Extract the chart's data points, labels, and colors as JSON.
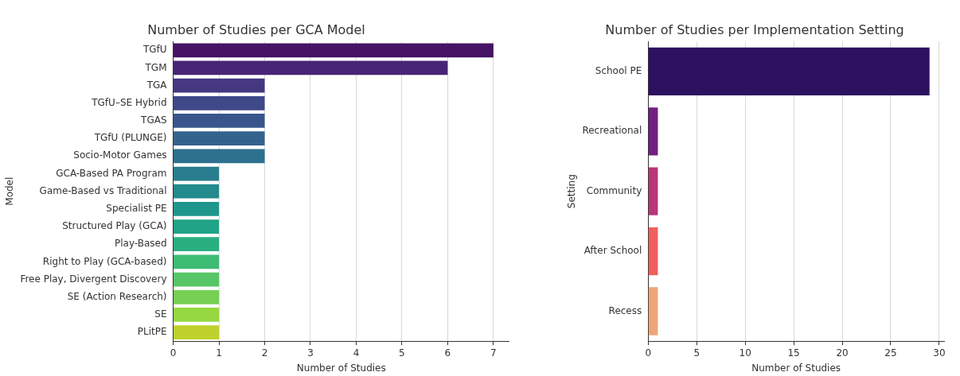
{
  "chart_data": [
    {
      "type": "bar",
      "orientation": "horizontal",
      "title": "Number of Studies per GCA Model",
      "xlabel": "Number of Studies",
      "ylabel": "Model",
      "categories": [
        "TGfU",
        "TGM",
        "TGA",
        "TGfU–SE Hybrid",
        "TGAS",
        "TGfU (PLUNGE)",
        "Socio-Motor Games",
        "GCA-Based PA Program",
        "Game-Based vs Traditional",
        "Specialist PE",
        "Structured Play (GCA)",
        "Play-Based",
        "Right to Play (GCA-based)",
        "Free Play, Divergent Discovery",
        "SE (Action Research)",
        "SE",
        "PLitPE"
      ],
      "values": [
        7,
        6,
        2,
        2,
        2,
        2,
        2,
        1,
        1,
        1,
        1,
        1,
        1,
        1,
        1,
        1,
        1
      ],
      "colors": [
        "#471365",
        "#482475",
        "#453781",
        "#3f4889",
        "#39568c",
        "#33638d",
        "#2d718e",
        "#287d8e",
        "#238a8d",
        "#1f968b",
        "#20a386",
        "#29af7f",
        "#3dbc74",
        "#56c667",
        "#75d054",
        "#95d840",
        "#bfd22b"
      ],
      "xlim": [
        0,
        7.35
      ],
      "xticks": [
        0,
        1,
        2,
        3,
        4,
        5,
        6,
        7
      ],
      "grid": "x",
      "legend": false
    },
    {
      "type": "bar",
      "orientation": "horizontal",
      "title": "Number of Studies per Implementation Setting",
      "xlabel": "Number of Studies",
      "ylabel": "Setting",
      "categories": [
        "School PE",
        "Recreational",
        "Community",
        "After School",
        "Recess"
      ],
      "values": [
        29,
        1,
        1,
        1,
        1
      ],
      "colors": [
        "#2c115f",
        "#721f81",
        "#b73779",
        "#f1605d",
        "#efa57a"
      ],
      "xlim": [
        0,
        30.5
      ],
      "xticks": [
        0,
        5,
        10,
        15,
        20,
        25,
        30
      ],
      "grid": "x",
      "legend": false
    }
  ]
}
